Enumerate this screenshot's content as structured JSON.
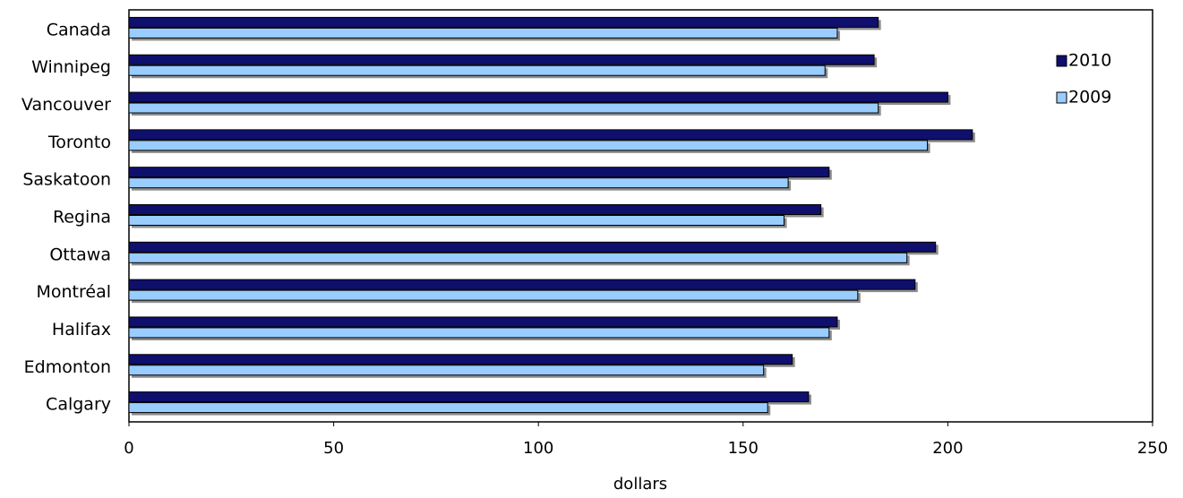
{
  "chart_data": {
    "type": "bar",
    "orientation": "horizontal",
    "title": "",
    "xlabel": "dollars",
    "ylabel": "",
    "xlim": [
      0,
      250
    ],
    "x_ticks": [
      "0",
      "50",
      "100",
      "150",
      "200",
      "250"
    ],
    "grid": false,
    "legend_position": "top-right",
    "categories": [
      "Canada",
      "Winnipeg",
      "Vancouver",
      "Toronto",
      "Saskatoon",
      "Regina",
      "Ottawa",
      "Montréal",
      "Halifax",
      "Edmonton",
      "Calgary"
    ],
    "series": [
      {
        "name": "2010",
        "color": "#0f0f6e",
        "values": [
          183,
          182,
          200,
          206,
          171,
          169,
          197,
          192,
          173,
          162,
          166
        ]
      },
      {
        "name": "2009",
        "color": "#99ccff",
        "values": [
          173,
          170,
          183,
          195,
          161,
          160,
          190,
          178,
          171,
          155,
          156
        ]
      }
    ]
  }
}
